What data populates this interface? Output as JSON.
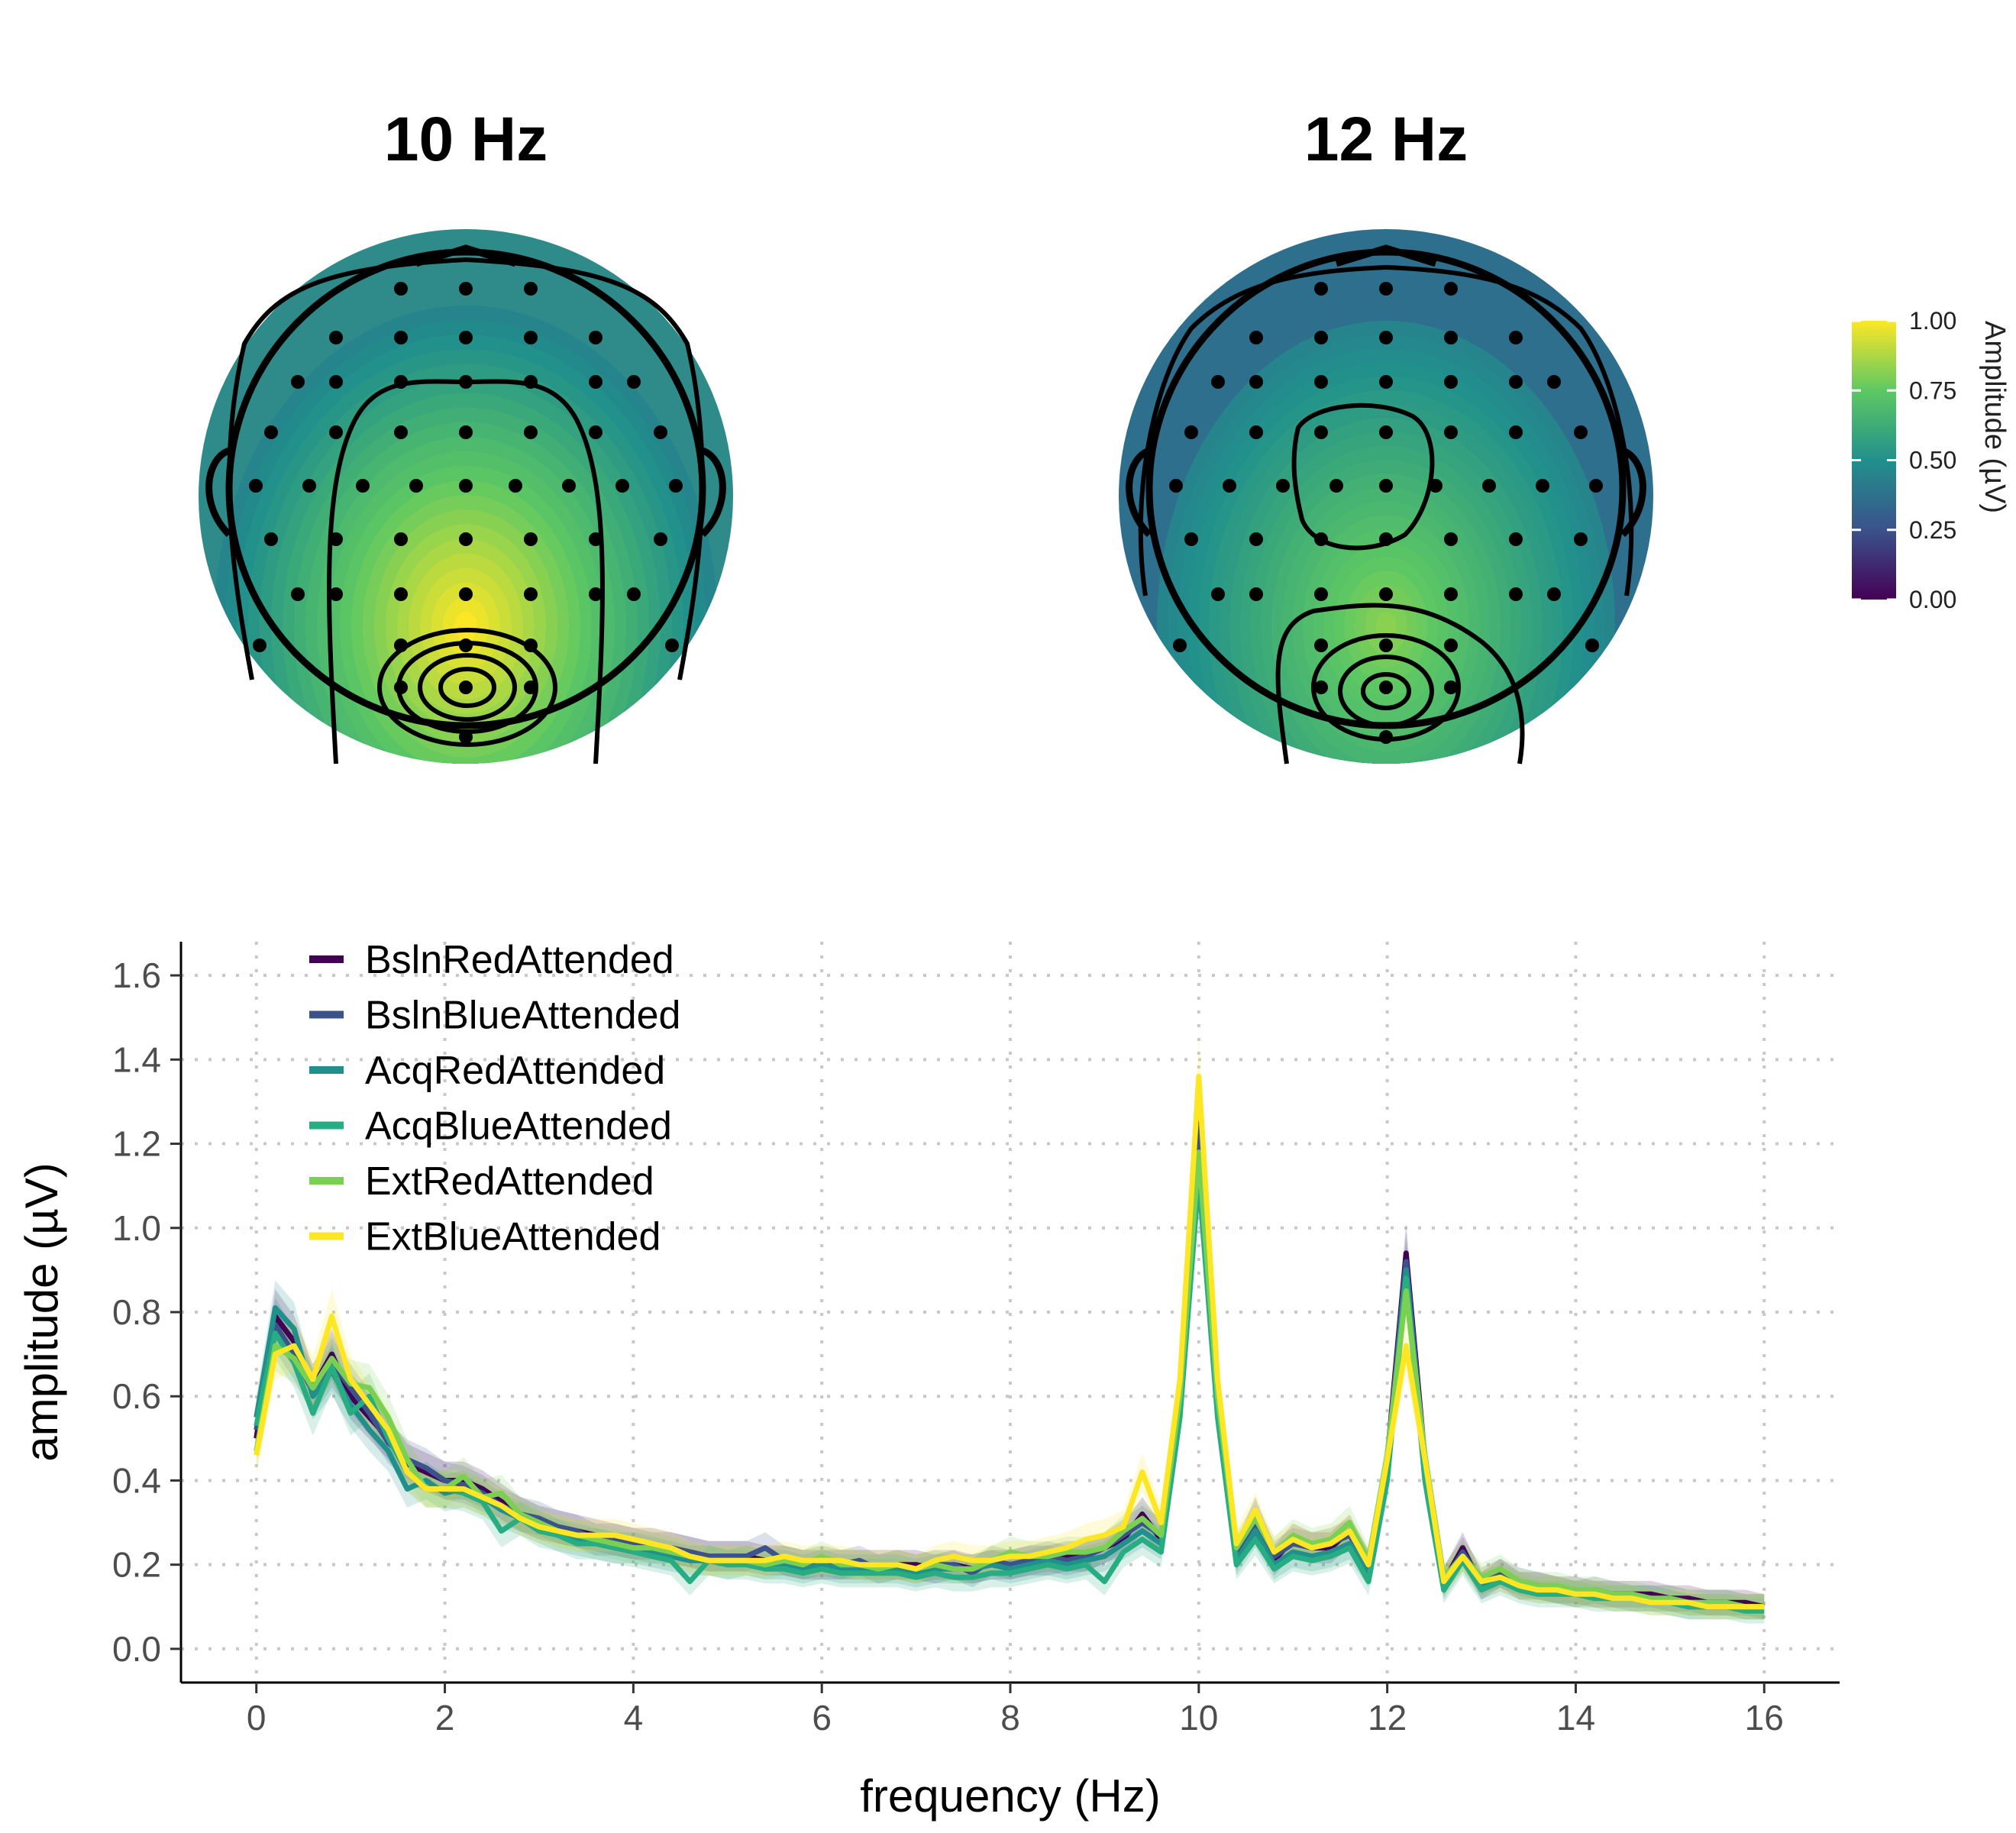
{
  "topomaps": [
    {
      "title": "10 Hz",
      "peak": 1.0
    },
    {
      "title": "12 Hz",
      "peak": 0.82
    }
  ],
  "colorbar": {
    "title": "Amplitude (µV)",
    "ticks": [
      "0.00",
      "0.25",
      "0.50",
      "0.75",
      "1.00"
    ],
    "range": [
      0,
      1
    ],
    "palette": [
      "#440154",
      "#3b528b",
      "#21908c",
      "#5dc863",
      "#fde725"
    ]
  },
  "chart_data": {
    "type": "line",
    "title": "",
    "xlabel": "frequency (Hz)",
    "ylabel": "amplitude (µV)",
    "xlim": [
      -0.8,
      16.8
    ],
    "ylim": [
      -0.08,
      1.68
    ],
    "xticks": [
      0,
      2,
      4,
      6,
      8,
      10,
      12,
      14,
      16
    ],
    "yticks": [
      0.0,
      0.2,
      0.4,
      0.6,
      0.8,
      1.0,
      1.2,
      1.4,
      1.6
    ],
    "grid": true,
    "legend_position": "top-left",
    "x": [
      0,
      0.2,
      0.4,
      0.6,
      0.8,
      1.0,
      1.2,
      1.4,
      1.6,
      1.8,
      2.0,
      2.2,
      2.4,
      2.6,
      2.8,
      3.0,
      3.2,
      3.4,
      3.6,
      3.8,
      4.0,
      4.2,
      4.4,
      4.6,
      4.8,
      5.0,
      5.2,
      5.4,
      5.6,
      5.8,
      6.0,
      6.2,
      6.4,
      6.6,
      6.8,
      7.0,
      7.2,
      7.4,
      7.6,
      7.8,
      8.0,
      8.2,
      8.4,
      8.6,
      8.8,
      9.0,
      9.2,
      9.4,
      9.6,
      9.8,
      10.0,
      10.2,
      10.4,
      10.6,
      10.8,
      11.0,
      11.2,
      11.4,
      11.6,
      11.8,
      12.0,
      12.2,
      12.4,
      12.6,
      12.8,
      13.0,
      13.2,
      13.4,
      13.6,
      13.8,
      14.0,
      14.2,
      14.4,
      14.6,
      14.8,
      15.0,
      15.2,
      15.4,
      15.6,
      15.8,
      16.0
    ],
    "series": [
      {
        "name": "BslnRedAttended",
        "color": "#440154",
        "values": [
          0.5,
          0.79,
          0.73,
          0.62,
          0.7,
          0.6,
          0.55,
          0.5,
          0.44,
          0.42,
          0.4,
          0.4,
          0.38,
          0.35,
          0.32,
          0.3,
          0.29,
          0.28,
          0.27,
          0.26,
          0.25,
          0.25,
          0.24,
          0.23,
          0.22,
          0.22,
          0.22,
          0.21,
          0.21,
          0.2,
          0.2,
          0.2,
          0.2,
          0.2,
          0.2,
          0.2,
          0.19,
          0.2,
          0.19,
          0.2,
          0.2,
          0.21,
          0.21,
          0.22,
          0.22,
          0.24,
          0.26,
          0.32,
          0.26,
          0.6,
          1.28,
          0.6,
          0.22,
          0.32,
          0.21,
          0.26,
          0.24,
          0.24,
          0.28,
          0.2,
          0.45,
          0.94,
          0.45,
          0.16,
          0.24,
          0.15,
          0.18,
          0.15,
          0.15,
          0.14,
          0.14,
          0.13,
          0.13,
          0.13,
          0.13,
          0.12,
          0.12,
          0.11,
          0.11,
          0.11,
          0.1
        ]
      },
      {
        "name": "BslnBlueAttended",
        "color": "#3b528b",
        "values": [
          0.52,
          0.77,
          0.7,
          0.61,
          0.68,
          0.62,
          0.56,
          0.49,
          0.45,
          0.43,
          0.4,
          0.39,
          0.37,
          0.34,
          0.32,
          0.31,
          0.29,
          0.28,
          0.26,
          0.26,
          0.25,
          0.24,
          0.24,
          0.23,
          0.22,
          0.22,
          0.22,
          0.24,
          0.21,
          0.2,
          0.21,
          0.2,
          0.21,
          0.19,
          0.2,
          0.19,
          0.2,
          0.2,
          0.18,
          0.21,
          0.2,
          0.21,
          0.22,
          0.21,
          0.22,
          0.24,
          0.27,
          0.3,
          0.27,
          0.58,
          1.24,
          0.58,
          0.23,
          0.3,
          0.22,
          0.25,
          0.24,
          0.25,
          0.27,
          0.2,
          0.44,
          0.92,
          0.44,
          0.16,
          0.23,
          0.16,
          0.18,
          0.16,
          0.15,
          0.14,
          0.13,
          0.14,
          0.13,
          0.12,
          0.12,
          0.12,
          0.11,
          0.11,
          0.11,
          0.1,
          0.1
        ]
      },
      {
        "name": "AcqRedAttended",
        "color": "#21908c",
        "values": [
          0.55,
          0.81,
          0.76,
          0.6,
          0.66,
          0.58,
          0.52,
          0.47,
          0.38,
          0.4,
          0.37,
          0.38,
          0.36,
          0.33,
          0.31,
          0.29,
          0.27,
          0.26,
          0.25,
          0.24,
          0.24,
          0.23,
          0.22,
          0.21,
          0.21,
          0.2,
          0.21,
          0.2,
          0.2,
          0.19,
          0.2,
          0.19,
          0.19,
          0.19,
          0.19,
          0.18,
          0.19,
          0.19,
          0.19,
          0.2,
          0.19,
          0.2,
          0.21,
          0.2,
          0.21,
          0.22,
          0.25,
          0.28,
          0.25,
          0.56,
          1.16,
          0.56,
          0.21,
          0.28,
          0.2,
          0.23,
          0.22,
          0.23,
          0.25,
          0.18,
          0.42,
          0.9,
          0.42,
          0.15,
          0.22,
          0.15,
          0.17,
          0.15,
          0.14,
          0.14,
          0.13,
          0.13,
          0.12,
          0.12,
          0.12,
          0.11,
          0.1,
          0.1,
          0.1,
          0.1,
          0.1
        ]
      },
      {
        "name": "AcqBlueAttended",
        "color": "#27ad81",
        "values": [
          0.53,
          0.75,
          0.68,
          0.56,
          0.67,
          0.56,
          0.6,
          0.5,
          0.42,
          0.38,
          0.38,
          0.37,
          0.35,
          0.28,
          0.31,
          0.28,
          0.27,
          0.25,
          0.25,
          0.24,
          0.23,
          0.22,
          0.21,
          0.16,
          0.21,
          0.2,
          0.2,
          0.19,
          0.19,
          0.18,
          0.19,
          0.18,
          0.18,
          0.18,
          0.18,
          0.17,
          0.18,
          0.17,
          0.17,
          0.18,
          0.18,
          0.19,
          0.2,
          0.19,
          0.2,
          0.16,
          0.23,
          0.26,
          0.23,
          0.55,
          1.12,
          0.55,
          0.2,
          0.26,
          0.19,
          0.22,
          0.21,
          0.22,
          0.24,
          0.16,
          0.4,
          0.88,
          0.4,
          0.14,
          0.21,
          0.14,
          0.16,
          0.14,
          0.13,
          0.13,
          0.13,
          0.12,
          0.12,
          0.12,
          0.11,
          0.11,
          0.1,
          0.1,
          0.1,
          0.09,
          0.09
        ]
      },
      {
        "name": "ExtRedAttended",
        "color": "#7ad151",
        "values": [
          0.47,
          0.72,
          0.69,
          0.62,
          0.69,
          0.63,
          0.62,
          0.55,
          0.45,
          0.38,
          0.38,
          0.41,
          0.36,
          0.37,
          0.32,
          0.3,
          0.28,
          0.27,
          0.26,
          0.25,
          0.24,
          0.24,
          0.23,
          0.22,
          0.21,
          0.21,
          0.21,
          0.2,
          0.21,
          0.2,
          0.22,
          0.2,
          0.2,
          0.19,
          0.2,
          0.19,
          0.2,
          0.19,
          0.19,
          0.21,
          0.23,
          0.22,
          0.22,
          0.23,
          0.23,
          0.24,
          0.28,
          0.31,
          0.27,
          0.6,
          1.18,
          0.6,
          0.24,
          0.31,
          0.23,
          0.27,
          0.25,
          0.26,
          0.3,
          0.21,
          0.46,
          0.85,
          0.46,
          0.17,
          0.22,
          0.17,
          0.19,
          0.16,
          0.15,
          0.15,
          0.14,
          0.14,
          0.13,
          0.13,
          0.12,
          0.12,
          0.11,
          0.11,
          0.11,
          0.1,
          0.1
        ]
      },
      {
        "name": "ExtBlueAttended",
        "color": "#fde725",
        "values": [
          0.46,
          0.7,
          0.72,
          0.64,
          0.79,
          0.64,
          0.58,
          0.52,
          0.42,
          0.38,
          0.38,
          0.38,
          0.36,
          0.34,
          0.31,
          0.29,
          0.28,
          0.27,
          0.27,
          0.27,
          0.26,
          0.25,
          0.24,
          0.22,
          0.21,
          0.21,
          0.21,
          0.21,
          0.22,
          0.21,
          0.21,
          0.21,
          0.2,
          0.2,
          0.2,
          0.19,
          0.21,
          0.22,
          0.21,
          0.21,
          0.22,
          0.22,
          0.23,
          0.24,
          0.26,
          0.27,
          0.29,
          0.42,
          0.3,
          0.64,
          1.36,
          0.64,
          0.25,
          0.33,
          0.23,
          0.26,
          0.24,
          0.25,
          0.28,
          0.2,
          0.45,
          0.72,
          0.45,
          0.16,
          0.22,
          0.16,
          0.17,
          0.15,
          0.14,
          0.14,
          0.13,
          0.13,
          0.12,
          0.12,
          0.11,
          0.11,
          0.11,
          0.1,
          0.1,
          0.1,
          0.1
        ]
      }
    ]
  }
}
